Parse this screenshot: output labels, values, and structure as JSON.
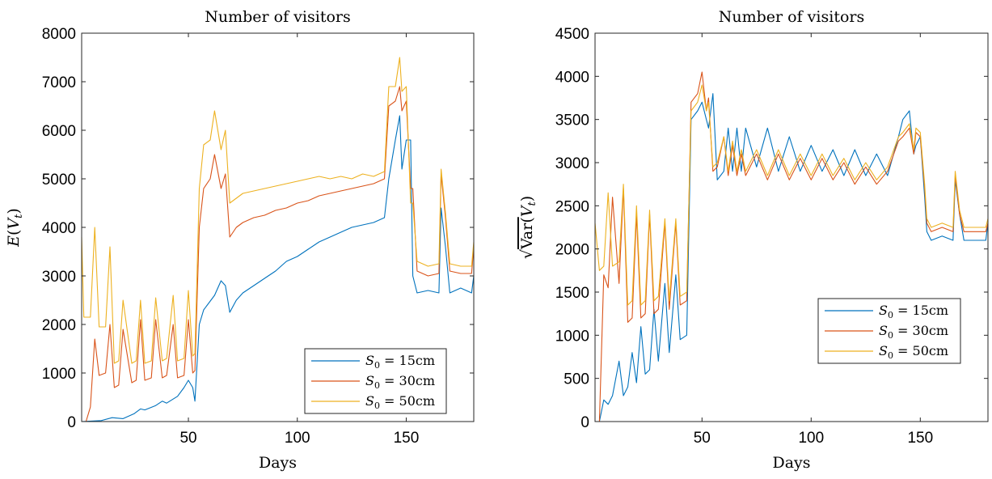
{
  "chart_data": [
    {
      "type": "line",
      "title": "Number of visitors",
      "xlabel": "Days",
      "ylabel": "E(V_t)",
      "xlim": [
        1,
        181
      ],
      "ylim": [
        0,
        8000
      ],
      "xticks": [
        50,
        100,
        150
      ],
      "yticks": [
        0,
        1000,
        2000,
        3000,
        4000,
        5000,
        6000,
        7000,
        8000
      ],
      "legend": "bottom-right",
      "colors": [
        "#0072BD",
        "#D95319",
        "#EDB120"
      ],
      "series": [
        {
          "name": "S_0 = 15cm",
          "x": [
            1,
            10,
            15,
            20,
            25,
            28,
            30,
            35,
            38,
            40,
            45,
            48,
            50,
            52,
            53,
            55,
            57,
            62,
            65,
            67,
            69,
            72,
            75,
            80,
            85,
            90,
            95,
            100,
            105,
            110,
            115,
            120,
            125,
            130,
            135,
            140,
            142,
            145,
            147,
            148,
            150,
            152,
            153,
            155,
            160,
            165,
            166,
            168,
            170,
            175,
            180,
            181
          ],
          "values": [
            0,
            20,
            80,
            60,
            160,
            260,
            240,
            330,
            420,
            380,
            520,
            700,
            850,
            700,
            420,
            2000,
            2300,
            2600,
            2900,
            2800,
            2250,
            2500,
            2650,
            2800,
            2950,
            3100,
            3300,
            3400,
            3550,
            3700,
            3800,
            3900,
            4000,
            4050,
            4100,
            4200,
            5000,
            5800,
            6300,
            5200,
            5800,
            5800,
            3000,
            2650,
            2700,
            2650,
            4400,
            3600,
            2650,
            2750,
            2650,
            3000
          ]
        },
        {
          "name": "S_0 = 30cm",
          "x": [
            1,
            3,
            5,
            7,
            9,
            12,
            14,
            16,
            18,
            20,
            24,
            26,
            28,
            30,
            33,
            35,
            38,
            40,
            43,
            45,
            48,
            50,
            52,
            53,
            55,
            57,
            60,
            62,
            65,
            67,
            69,
            72,
            75,
            80,
            85,
            90,
            95,
            100,
            105,
            110,
            115,
            120,
            125,
            130,
            135,
            140,
            142,
            145,
            147,
            148,
            150,
            152,
            153,
            155,
            160,
            165,
            166,
            168,
            170,
            175,
            180,
            181
          ],
          "values": [
            0,
            0,
            300,
            1700,
            950,
            1000,
            2000,
            700,
            750,
            1900,
            800,
            850,
            2100,
            850,
            900,
            2100,
            900,
            950,
            2000,
            900,
            950,
            2100,
            1000,
            1050,
            4000,
            4800,
            5000,
            5500,
            4800,
            5100,
            3800,
            4000,
            4100,
            4200,
            4250,
            4350,
            4400,
            4500,
            4550,
            4650,
            4700,
            4750,
            4800,
            4850,
            4900,
            5000,
            6500,
            6600,
            6900,
            6400,
            6600,
            4800,
            4800,
            3100,
            3000,
            3050,
            5100,
            4200,
            3100,
            3050,
            3050,
            3600
          ]
        },
        {
          "name": "S_0 = 50cm",
          "x": [
            1,
            2,
            5,
            7,
            9,
            12,
            14,
            16,
            18,
            20,
            24,
            26,
            28,
            30,
            33,
            35,
            38,
            40,
            43,
            45,
            48,
            50,
            52,
            53,
            55,
            57,
            60,
            62,
            65,
            67,
            69,
            72,
            75,
            80,
            85,
            90,
            95,
            100,
            105,
            110,
            115,
            120,
            125,
            130,
            135,
            140,
            142,
            145,
            147,
            148,
            150,
            152,
            153,
            155,
            160,
            165,
            166,
            168,
            170,
            175,
            180,
            181
          ],
          "values": [
            3800,
            2150,
            2150,
            4000,
            1950,
            1950,
            3600,
            1200,
            1250,
            2500,
            1200,
            1250,
            2500,
            1200,
            1250,
            2550,
            1250,
            1300,
            2600,
            1250,
            1300,
            2700,
            1350,
            1400,
            4800,
            5700,
            5800,
            6400,
            5600,
            6000,
            4500,
            4600,
            4700,
            4750,
            4800,
            4850,
            4900,
            4950,
            5000,
            5050,
            5000,
            5050,
            5000,
            5100,
            5050,
            5150,
            6900,
            6900,
            7500,
            6800,
            6900,
            4500,
            4500,
            3300,
            3200,
            3250,
            5200,
            4300,
            3250,
            3200,
            3200,
            3700
          ]
        }
      ]
    },
    {
      "type": "line",
      "title": "Number of visitors",
      "xlabel": "Days",
      "ylabel": "√Var(V_t)",
      "xlim": [
        1,
        181
      ],
      "ylim": [
        0,
        4500
      ],
      "xticks": [
        50,
        100,
        150
      ],
      "yticks": [
        0,
        500,
        1000,
        1500,
        2000,
        2500,
        3000,
        3500,
        4000,
        4500
      ],
      "legend": "center-right",
      "colors": [
        "#0072BD",
        "#D95319",
        "#EDB120"
      ],
      "series": [
        {
          "name": "S_0 = 15cm",
          "x": [
            1,
            3,
            5,
            7,
            9,
            12,
            14,
            16,
            18,
            20,
            22,
            24,
            26,
            28,
            30,
            33,
            35,
            38,
            40,
            43,
            45,
            48,
            50,
            52,
            53,
            55,
            57,
            60,
            62,
            64,
            66,
            68,
            70,
            75,
            80,
            85,
            90,
            95,
            100,
            105,
            110,
            115,
            120,
            125,
            130,
            135,
            140,
            142,
            145,
            147,
            148,
            150,
            152,
            153,
            155,
            160,
            165,
            166,
            168,
            170,
            175,
            180,
            181
          ],
          "values": [
            0,
            0,
            250,
            200,
            300,
            700,
            300,
            400,
            800,
            450,
            1100,
            550,
            600,
            1300,
            700,
            1600,
            800,
            1700,
            950,
            1000,
            3500,
            3600,
            3700,
            3500,
            3400,
            3800,
            2800,
            2900,
            3400,
            2900,
            3400,
            2900,
            3400,
            2950,
            3400,
            2900,
            3300,
            2900,
            3200,
            2900,
            3150,
            2850,
            3150,
            2850,
            3100,
            2850,
            3300,
            3500,
            3600,
            3100,
            3200,
            3300,
            2600,
            2200,
            2100,
            2150,
            2100,
            2800,
            2400,
            2100,
            2100,
            2100,
            2300
          ]
        },
        {
          "name": "S_0 = 30cm",
          "x": [
            1,
            3,
            5,
            7,
            9,
            12,
            14,
            16,
            18,
            20,
            22,
            24,
            26,
            28,
            30,
            33,
            35,
            38,
            40,
            43,
            45,
            48,
            50,
            52,
            53,
            55,
            57,
            60,
            62,
            64,
            66,
            68,
            70,
            75,
            80,
            85,
            90,
            95,
            100,
            105,
            110,
            115,
            120,
            125,
            130,
            135,
            140,
            142,
            145,
            147,
            148,
            150,
            152,
            153,
            155,
            160,
            165,
            166,
            168,
            170,
            175,
            180,
            181
          ],
          "values": [
            0,
            0,
            1700,
            1550,
            2600,
            1600,
            2700,
            1150,
            1200,
            2400,
            1200,
            1250,
            2400,
            1250,
            1300,
            2300,
            1300,
            2300,
            1350,
            1400,
            3700,
            3800,
            4050,
            3600,
            3750,
            2900,
            2950,
            3300,
            2850,
            3200,
            2850,
            3100,
            2850,
            3100,
            2800,
            3100,
            2800,
            3050,
            2800,
            3050,
            2800,
            3000,
            2750,
            2950,
            2750,
            2900,
            3250,
            3300,
            3400,
            3100,
            3350,
            3300,
            2700,
            2300,
            2200,
            2250,
            2200,
            2850,
            2400,
            2200,
            2200,
            2200,
            2300
          ]
        },
        {
          "name": "S_0 = 50cm",
          "x": [
            1,
            3,
            5,
            7,
            9,
            12,
            14,
            16,
            18,
            20,
            22,
            24,
            26,
            28,
            30,
            33,
            35,
            38,
            40,
            43,
            45,
            48,
            50,
            52,
            53,
            55,
            57,
            60,
            62,
            64,
            66,
            68,
            70,
            75,
            80,
            85,
            90,
            95,
            100,
            105,
            110,
            115,
            120,
            125,
            130,
            135,
            140,
            142,
            145,
            147,
            148,
            150,
            152,
            153,
            155,
            160,
            165,
            166,
            168,
            170,
            175,
            180,
            181
          ],
          "values": [
            2300,
            1750,
            1800,
            2650,
            1800,
            1850,
            2750,
            1350,
            1400,
            2500,
            1350,
            1400,
            2450,
            1400,
            1450,
            2350,
            1400,
            2350,
            1450,
            1500,
            3600,
            3700,
            3900,
            3600,
            3700,
            2950,
            3000,
            3300,
            2900,
            3250,
            2900,
            3150,
            2900,
            3150,
            2850,
            3150,
            2850,
            3100,
            2850,
            3100,
            2850,
            3050,
            2800,
            3000,
            2800,
            2950,
            3300,
            3350,
            3450,
            3150,
            3400,
            3350,
            2750,
            2350,
            2250,
            2300,
            2250,
            2900,
            2450,
            2250,
            2250,
            2250,
            2350
          ]
        }
      ]
    }
  ]
}
